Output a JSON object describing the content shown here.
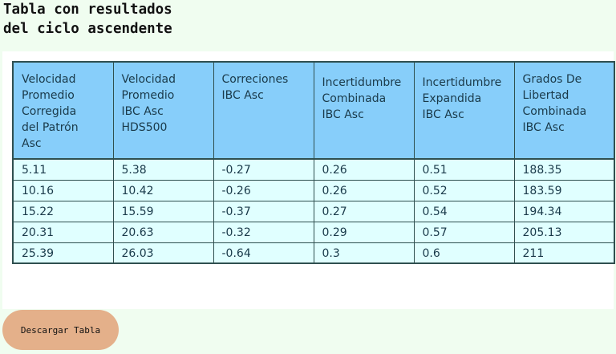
{
  "page": {
    "title_line1": "Tabla con resultados",
    "title_line2": "del ciclo ascendente"
  },
  "table": {
    "headers": [
      [
        "Velocidad",
        "Promedio",
        "Corregida",
        "del Patrón",
        "Asc"
      ],
      [
        "Velocidad",
        "Promedio",
        "IBC Asc",
        "HDS500"
      ],
      [
        "Correciones",
        "IBC Asc"
      ],
      [
        "Incertidumbre",
        "Combinada",
        "IBC Asc"
      ],
      [
        "Incertidumbre",
        "Expandida",
        "IBC Asc"
      ],
      [
        "Grados De",
        "Libertad",
        "Combinada",
        "IBC Asc"
      ]
    ],
    "rows": [
      [
        "5.11",
        "5.38",
        "-0.27",
        "0.26",
        "0.51",
        "188.35"
      ],
      [
        "10.16",
        "10.42",
        "-0.26",
        "0.26",
        "0.52",
        "183.59"
      ],
      [
        "15.22",
        "15.59",
        "-0.37",
        "0.27",
        "0.54",
        "194.34"
      ],
      [
        "20.31",
        "20.63",
        "-0.32",
        "0.29",
        "0.57",
        "205.13"
      ],
      [
        "25.39",
        "26.03",
        "-0.64",
        "0.3",
        "0.6",
        "211"
      ]
    ]
  },
  "actions": {
    "download_label": "Descargar Tabla"
  }
}
